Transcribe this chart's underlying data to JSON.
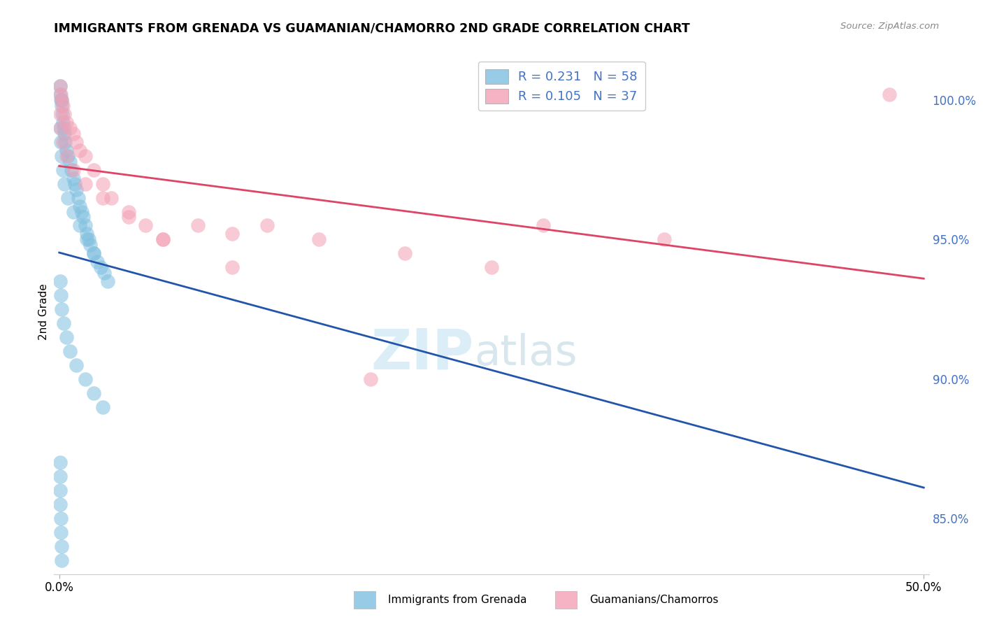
{
  "title": "IMMIGRANTS FROM GRENADA VS GUAMANIAN/CHAMORRO 2ND GRADE CORRELATION CHART",
  "source": "Source: ZipAtlas.com",
  "ylabel": "2nd Grade",
  "xlim": [
    0.0,
    50.0
  ],
  "ylim": [
    83.0,
    101.5
  ],
  "yticks": [
    85.0,
    90.0,
    95.0,
    100.0
  ],
  "xtick_labels": [
    "0.0%",
    "50.0%"
  ],
  "ytick_labels": [
    "85.0%",
    "90.0%",
    "95.0%",
    "100.0%"
  ],
  "R_blue": 0.231,
  "N_blue": 58,
  "R_pink": 0.105,
  "N_pink": 37,
  "legend_label_blue": "Immigrants from Grenada",
  "legend_label_pink": "Guamanians/Chamorros",
  "blue_color": "#7fbfdf",
  "pink_color": "#f4a0b5",
  "blue_edge_color": "#5599cc",
  "pink_edge_color": "#e07090",
  "blue_line_color": "#2255aa",
  "pink_line_color": "#dd4466",
  "watermark_zip": "ZIP",
  "watermark_atlas": "atlas",
  "blue_x": [
    0.05,
    0.07,
    0.1,
    0.12,
    0.15,
    0.18,
    0.2,
    0.25,
    0.3,
    0.35,
    0.4,
    0.5,
    0.6,
    0.7,
    0.8,
    0.9,
    1.0,
    1.1,
    1.2,
    1.3,
    1.4,
    1.5,
    1.6,
    1.7,
    1.8,
    2.0,
    2.2,
    2.4,
    2.6,
    2.8,
    0.05,
    0.08,
    0.12,
    0.2,
    0.3,
    0.5,
    0.8,
    1.2,
    1.6,
    2.0,
    0.05,
    0.1,
    0.15,
    0.25,
    0.4,
    0.6,
    1.0,
    1.5,
    2.0,
    2.5,
    0.05,
    0.05,
    0.05,
    0.07,
    0.08,
    0.1,
    0.12,
    0.15
  ],
  "blue_y": [
    100.5,
    100.2,
    100.0,
    100.0,
    99.8,
    99.5,
    99.2,
    99.0,
    98.8,
    98.5,
    98.2,
    98.0,
    97.8,
    97.5,
    97.2,
    97.0,
    96.8,
    96.5,
    96.2,
    96.0,
    95.8,
    95.5,
    95.2,
    95.0,
    94.8,
    94.5,
    94.2,
    94.0,
    93.8,
    93.5,
    99.0,
    98.5,
    98.0,
    97.5,
    97.0,
    96.5,
    96.0,
    95.5,
    95.0,
    94.5,
    93.5,
    93.0,
    92.5,
    92.0,
    91.5,
    91.0,
    90.5,
    90.0,
    89.5,
    89.0,
    87.0,
    86.5,
    86.0,
    85.5,
    85.0,
    84.5,
    84.0,
    83.5
  ],
  "pink_x": [
    0.05,
    0.08,
    0.12,
    0.2,
    0.3,
    0.4,
    0.6,
    0.8,
    1.0,
    1.2,
    1.5,
    2.0,
    2.5,
    3.0,
    4.0,
    5.0,
    6.0,
    8.0,
    10.0,
    12.0,
    15.0,
    20.0,
    25.0,
    0.05,
    0.1,
    0.2,
    0.4,
    0.8,
    1.5,
    2.5,
    4.0,
    6.0,
    10.0,
    18.0,
    28.0,
    35.0,
    48.0
  ],
  "pink_y": [
    100.5,
    100.2,
    100.0,
    99.8,
    99.5,
    99.2,
    99.0,
    98.8,
    98.5,
    98.2,
    98.0,
    97.5,
    97.0,
    96.5,
    96.0,
    95.5,
    95.0,
    95.5,
    95.2,
    95.5,
    95.0,
    94.5,
    94.0,
    99.5,
    99.0,
    98.5,
    98.0,
    97.5,
    97.0,
    96.5,
    95.8,
    95.0,
    94.0,
    90.0,
    95.5,
    95.0,
    100.2
  ]
}
